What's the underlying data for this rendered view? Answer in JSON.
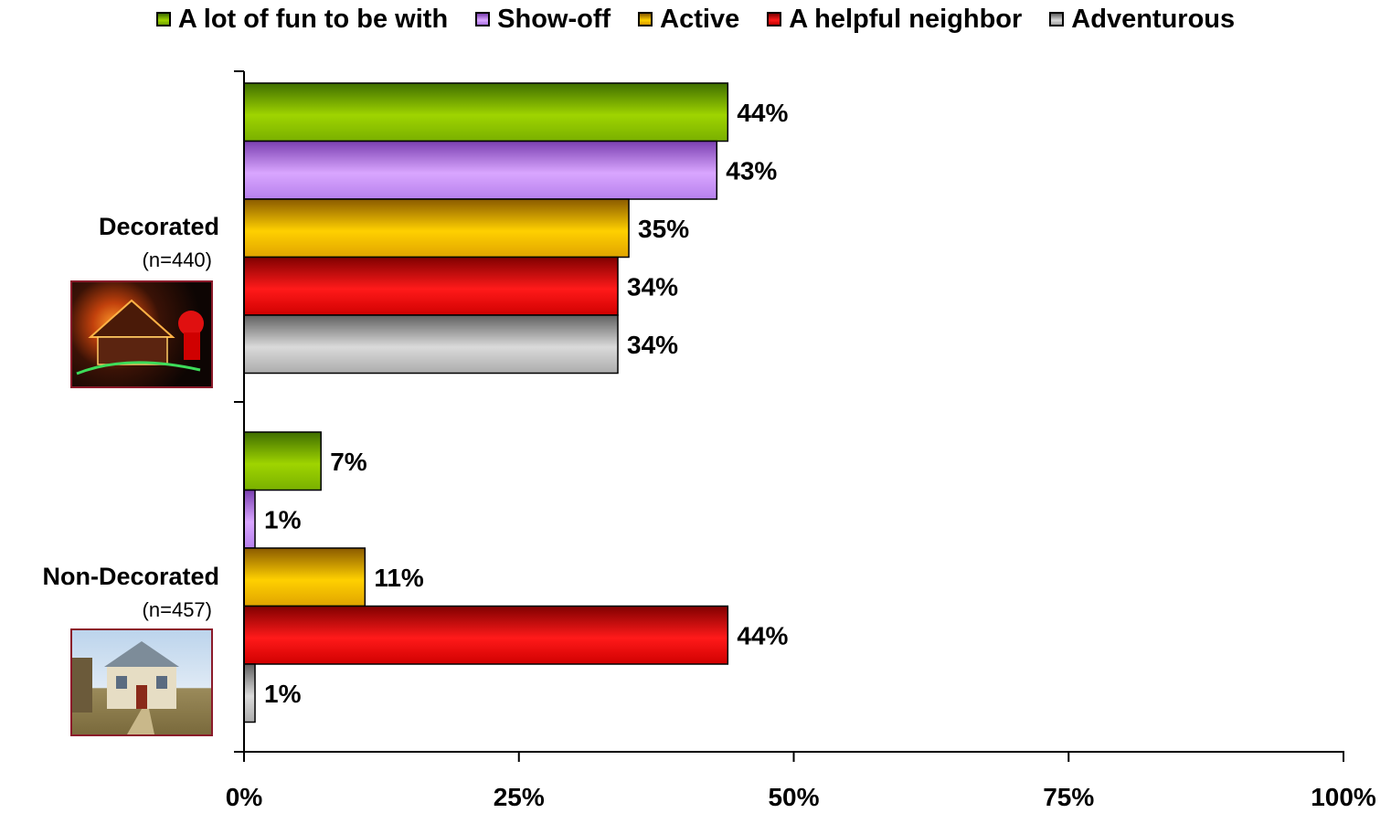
{
  "chart_data": {
    "type": "bar",
    "orientation": "horizontal",
    "categories": [
      "Decorated",
      "Non-Decorated"
    ],
    "category_notes": [
      "(n=440)",
      "(n=457)"
    ],
    "series": [
      {
        "name": "A lot of fun to be with",
        "values": [
          44,
          7
        ],
        "labels": [
          "44%",
          "7%"
        ],
        "color": "#8fc400"
      },
      {
        "name": "Show-off",
        "values": [
          43,
          1
        ],
        "labels": [
          "43%",
          "1%"
        ],
        "color": "#c98cf5"
      },
      {
        "name": "Active",
        "values": [
          35,
          11
        ],
        "labels": [
          "35%",
          "11%"
        ],
        "color": "#f0b400"
      },
      {
        "name": "A helpful neighbor",
        "values": [
          34,
          44
        ],
        "labels": [
          "34%",
          "44%"
        ],
        "color": "#e80000"
      },
      {
        "name": "Adventurous",
        "values": [
          34,
          1
        ],
        "labels": [
          "34%",
          "1%"
        ],
        "color": "#b4b4b4"
      }
    ],
    "x_ticks": [
      "0%",
      "25%",
      "50%",
      "75%",
      "100%"
    ],
    "xlim": [
      0,
      100
    ],
    "legend_position": "top",
    "grid": false,
    "title": "",
    "xlabel": "",
    "ylabel": ""
  },
  "images": {
    "decorated": "decorated-house-photo",
    "non_decorated": "plain-house-photo"
  }
}
